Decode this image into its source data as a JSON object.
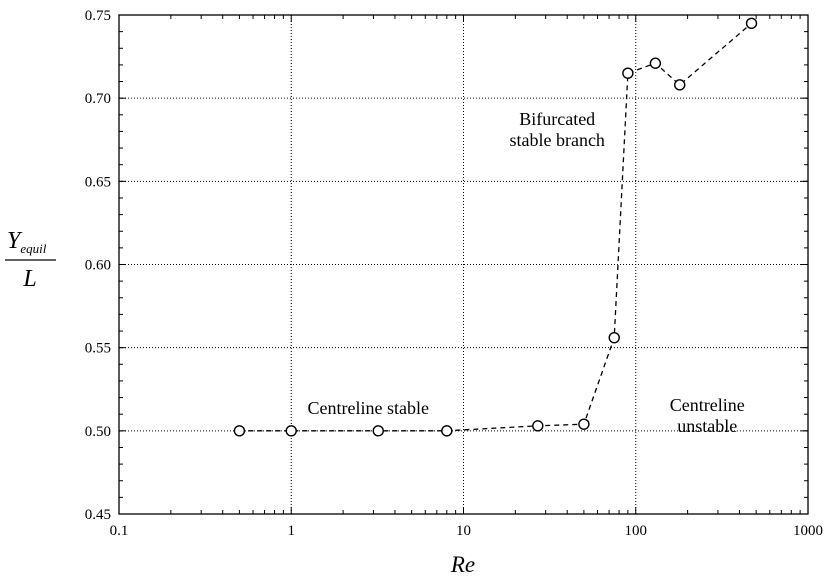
{
  "chart_data": {
    "type": "scatter",
    "x_scale": "log",
    "xlim": [
      0.1,
      1000
    ],
    "ylim": [
      0.45,
      0.75
    ],
    "grid": true,
    "xticks": [
      "0.1",
      "1",
      "10",
      "100",
      "1000"
    ],
    "yticks": [
      "0.45",
      "0.50",
      "0.55",
      "0.60",
      "0.65",
      "0.70",
      "0.75"
    ],
    "xlabel": "Re",
    "ylabel": {
      "numerator_base": "Y",
      "numerator_sub": "equil",
      "denominator": "L"
    },
    "series": [
      {
        "x": [
          0.5,
          1,
          3.2,
          8,
          27,
          50,
          75,
          90,
          130,
          180,
          470
        ],
        "y": [
          0.5,
          0.5,
          0.5,
          0.5,
          0.503,
          0.504,
          0.556,
          0.715,
          0.721,
          0.708,
          0.745
        ],
        "marker": "open-circle",
        "line": "dashed"
      }
    ],
    "annotations": [
      {
        "text": [
          "Centreline stable"
        ],
        "x": 2.8,
        "y": 0.51
      },
      {
        "text": [
          "Bifurcated",
          "stable branch"
        ],
        "x": 35,
        "y": 0.684
      },
      {
        "text": [
          "Centreline",
          "unstable"
        ],
        "x": 260,
        "y": 0.512
      }
    ]
  }
}
